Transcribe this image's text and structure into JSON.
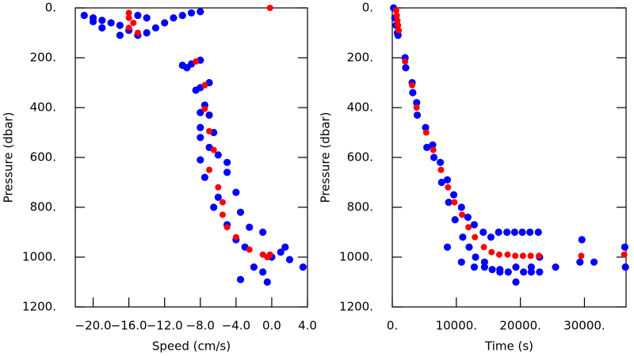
{
  "chart_data": [
    {
      "type": "scatter",
      "xlabel": "Speed (cm/s)",
      "ylabel": "Pressure (dbar)",
      "xlim": [
        -22,
        4
      ],
      "ylim": [
        1200,
        0
      ],
      "y_inverted": true,
      "xticks": [
        {
          "value": -20,
          "label": "−20.0"
        },
        {
          "value": -16,
          "label": "−16.0"
        },
        {
          "value": -12,
          "label": "−12.0"
        },
        {
          "value": -8,
          "label": "−8.0"
        },
        {
          "value": -4,
          "label": "−4.0"
        },
        {
          "value": 0,
          "label": "0.0"
        },
        {
          "value": 4,
          "label": "4.0"
        }
      ],
      "yticks": [
        {
          "value": 0,
          "label": "0."
        },
        {
          "value": 200,
          "label": "200."
        },
        {
          "value": 400,
          "label": "400."
        },
        {
          "value": 600,
          "label": "600."
        },
        {
          "value": 800,
          "label": "800."
        },
        {
          "value": 1000,
          "label": "1000."
        },
        {
          "value": 1200,
          "label": "1200."
        }
      ],
      "series": [
        {
          "color": "#0000ff",
          "x": [
            -21,
            -20,
            -19,
            -18,
            -17,
            -16,
            -15,
            -14,
            -13,
            -12,
            -11,
            -10,
            -9,
            -8,
            -19,
            -17,
            -14,
            -20,
            -15,
            -10,
            -9.5,
            -9,
            -8,
            -8,
            -7,
            -8.5,
            -7.5,
            -8,
            -7,
            -8,
            -6.5,
            -8,
            -7,
            -6,
            -8,
            -5,
            -7.5,
            -5,
            -6,
            -4,
            -6.5,
            -3.5,
            -5,
            -2.5,
            -4,
            -1,
            -3,
            -2,
            0,
            1,
            2,
            -1,
            3.5,
            -0.5,
            -3.5,
            1.5
          ],
          "values": [
            30,
            40,
            50,
            60,
            70,
            90,
            110,
            100,
            80,
            60,
            40,
            30,
            20,
            15,
            80,
            110,
            40,
            55,
            30,
            230,
            240,
            225,
            210,
            320,
            300,
            330,
            390,
            420,
            430,
            480,
            500,
            520,
            560,
            590,
            610,
            620,
            680,
            660,
            760,
            740,
            800,
            820,
            870,
            880,
            930,
            900,
            960,
            1040,
            1000,
            980,
            1010,
            1060,
            1040,
            1100,
            1090,
            960
          ]
        },
        {
          "color": "#ff0000",
          "x": [
            -16,
            -16,
            -15.5,
            -16,
            -15,
            -0.2,
            -8.5,
            -7.5,
            -7.5,
            -7,
            -6.5,
            -7,
            -6,
            -5.5,
            -5.5,
            -5,
            -4,
            -2.5,
            -1,
            -0.5,
            -0.2
          ],
          "values": [
            20,
            40,
            60,
            80,
            100,
            0,
            215,
            310,
            405,
            495,
            570,
            650,
            720,
            780,
            830,
            880,
            920,
            970,
            990,
            1000,
            990
          ]
        }
      ]
    },
    {
      "type": "scatter",
      "xlabel": "Time (s)",
      "ylabel": "Pressure (dbar)",
      "xlim": [
        0,
        36500
      ],
      "ylim": [
        1200,
        0
      ],
      "y_inverted": true,
      "xticks": [
        {
          "value": 0,
          "label": "0."
        },
        {
          "value": 10000,
          "label": "10000."
        },
        {
          "value": 20000,
          "label": "20000."
        },
        {
          "value": 30000,
          "label": "30000."
        }
      ],
      "yticks": [
        {
          "value": 0,
          "label": "0."
        },
        {
          "value": 200,
          "label": "200."
        },
        {
          "value": 400,
          "label": "400."
        },
        {
          "value": 600,
          "label": "600."
        },
        {
          "value": 800,
          "label": "800."
        },
        {
          "value": 1000,
          "label": "1000."
        },
        {
          "value": 1200,
          "label": "1200."
        }
      ],
      "series": [
        {
          "color": "#0000ff",
          "x": [
            200,
            400,
            600,
            800,
            900,
            2000,
            2100,
            3100,
            3200,
            3800,
            3900,
            5200,
            5400,
            6300,
            6500,
            7500,
            7700,
            8600,
            8800,
            9600,
            9800,
            10800,
            11000,
            11800,
            12000,
            12800,
            13000,
            14200,
            14400,
            15400,
            15600,
            16600,
            16800,
            17900,
            18100,
            19100,
            19300,
            20300,
            20500,
            21500,
            21700,
            22800,
            23000,
            8600,
            10800,
            12800,
            14400,
            16800,
            19300,
            21700,
            23000,
            25500,
            29300,
            29600,
            31500,
            36300,
            36400
          ],
          "values": [
            0,
            40,
            70,
            100,
            110,
            200,
            240,
            300,
            340,
            380,
            430,
            480,
            560,
            550,
            600,
            620,
            700,
            690,
            780,
            750,
            850,
            800,
            920,
            840,
            960,
            870,
            1000,
            900,
            1040,
            920,
            1050,
            900,
            1050,
            900,
            1060,
            900,
            1100,
            900,
            1060,
            900,
            1060,
            900,
            1060,
            960,
            1020,
            1040,
            1020,
            1060,
            1040,
            1040,
            1000,
            1040,
            1020,
            930,
            1020,
            960,
            1040
          ]
        },
        {
          "color": "#ff0000",
          "x": [
            600,
            700,
            800,
            900,
            1000,
            2000,
            3100,
            3800,
            5300,
            6400,
            7600,
            8700,
            9700,
            10900,
            11900,
            12900,
            14300,
            15500,
            16700,
            18000,
            19200,
            20400,
            21600,
            22900,
            29500,
            36200
          ],
          "values": [
            10,
            30,
            50,
            70,
            90,
            215,
            310,
            400,
            500,
            570,
            650,
            720,
            780,
            830,
            880,
            920,
            960,
            980,
            990,
            990,
            995,
            995,
            995,
            995,
            995,
            990
          ]
        }
      ]
    }
  ]
}
